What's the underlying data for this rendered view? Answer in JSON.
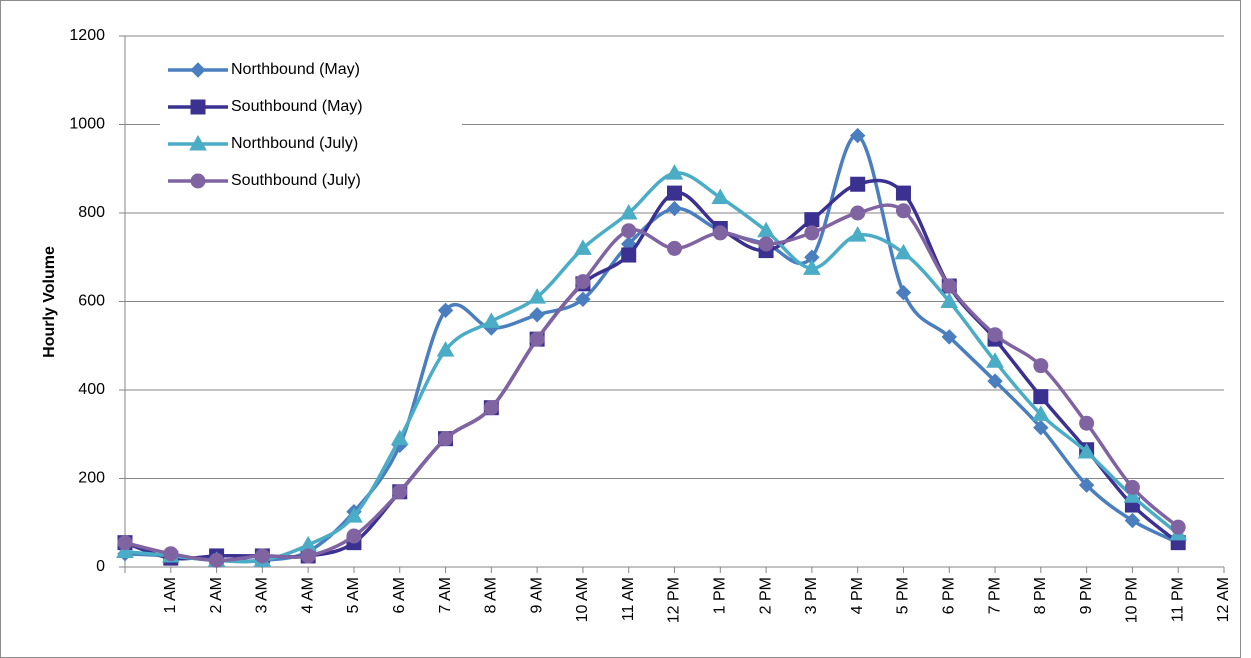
{
  "chart_data": {
    "type": "line",
    "y_label": "Hourly Volume",
    "categories": [
      null,
      "1 AM",
      "2 AM",
      "3 AM",
      "4 AM",
      "5 AM",
      "6 AM",
      "7 AM",
      "8 AM",
      "9 AM",
      "10 AM",
      "11 AM",
      "12 PM",
      "1 PM",
      "2 PM",
      "3 PM",
      "4 PM",
      "5 PM",
      "6 PM",
      "7 PM",
      "8 PM",
      "9 PM",
      "10 PM",
      "11 PM",
      "12 AM"
    ],
    "series": [
      {
        "name": "Northbound (May)",
        "color": "#4a7ebf",
        "marker": "diamond",
        "values": [
          30,
          25,
          15,
          15,
          35,
          125,
          275,
          580,
          540,
          570,
          605,
          730,
          810,
          760,
          730,
          700,
          975,
          620,
          520,
          420,
          315,
          185,
          105,
          55,
          null
        ]
      },
      {
        "name": "Southbound (May)",
        "color": "#3b3190",
        "marker": "square",
        "values": [
          55,
          20,
          25,
          25,
          25,
          55,
          170,
          290,
          360,
          515,
          640,
          705,
          845,
          765,
          715,
          785,
          865,
          845,
          635,
          515,
          385,
          265,
          140,
          55,
          null
        ]
      },
      {
        "name": "Northbound (July)",
        "color": "#4bacc6",
        "marker": "triangle",
        "values": [
          35,
          25,
          15,
          15,
          50,
          115,
          290,
          490,
          555,
          610,
          720,
          800,
          890,
          835,
          760,
          675,
          750,
          710,
          600,
          465,
          345,
          260,
          160,
          75,
          null
        ]
      },
      {
        "name": "Southbound (July)",
        "color": "#8064a2",
        "marker": "circle",
        "values": [
          55,
          30,
          15,
          25,
          25,
          70,
          170,
          290,
          360,
          515,
          645,
          760,
          720,
          755,
          730,
          755,
          800,
          805,
          635,
          525,
          455,
          325,
          180,
          90,
          null
        ]
      }
    ],
    "ylim": [
      0,
      1200
    ],
    "yticks": [
      0,
      200,
      400,
      600,
      800,
      1000,
      1200
    ],
    "grid": true
  }
}
